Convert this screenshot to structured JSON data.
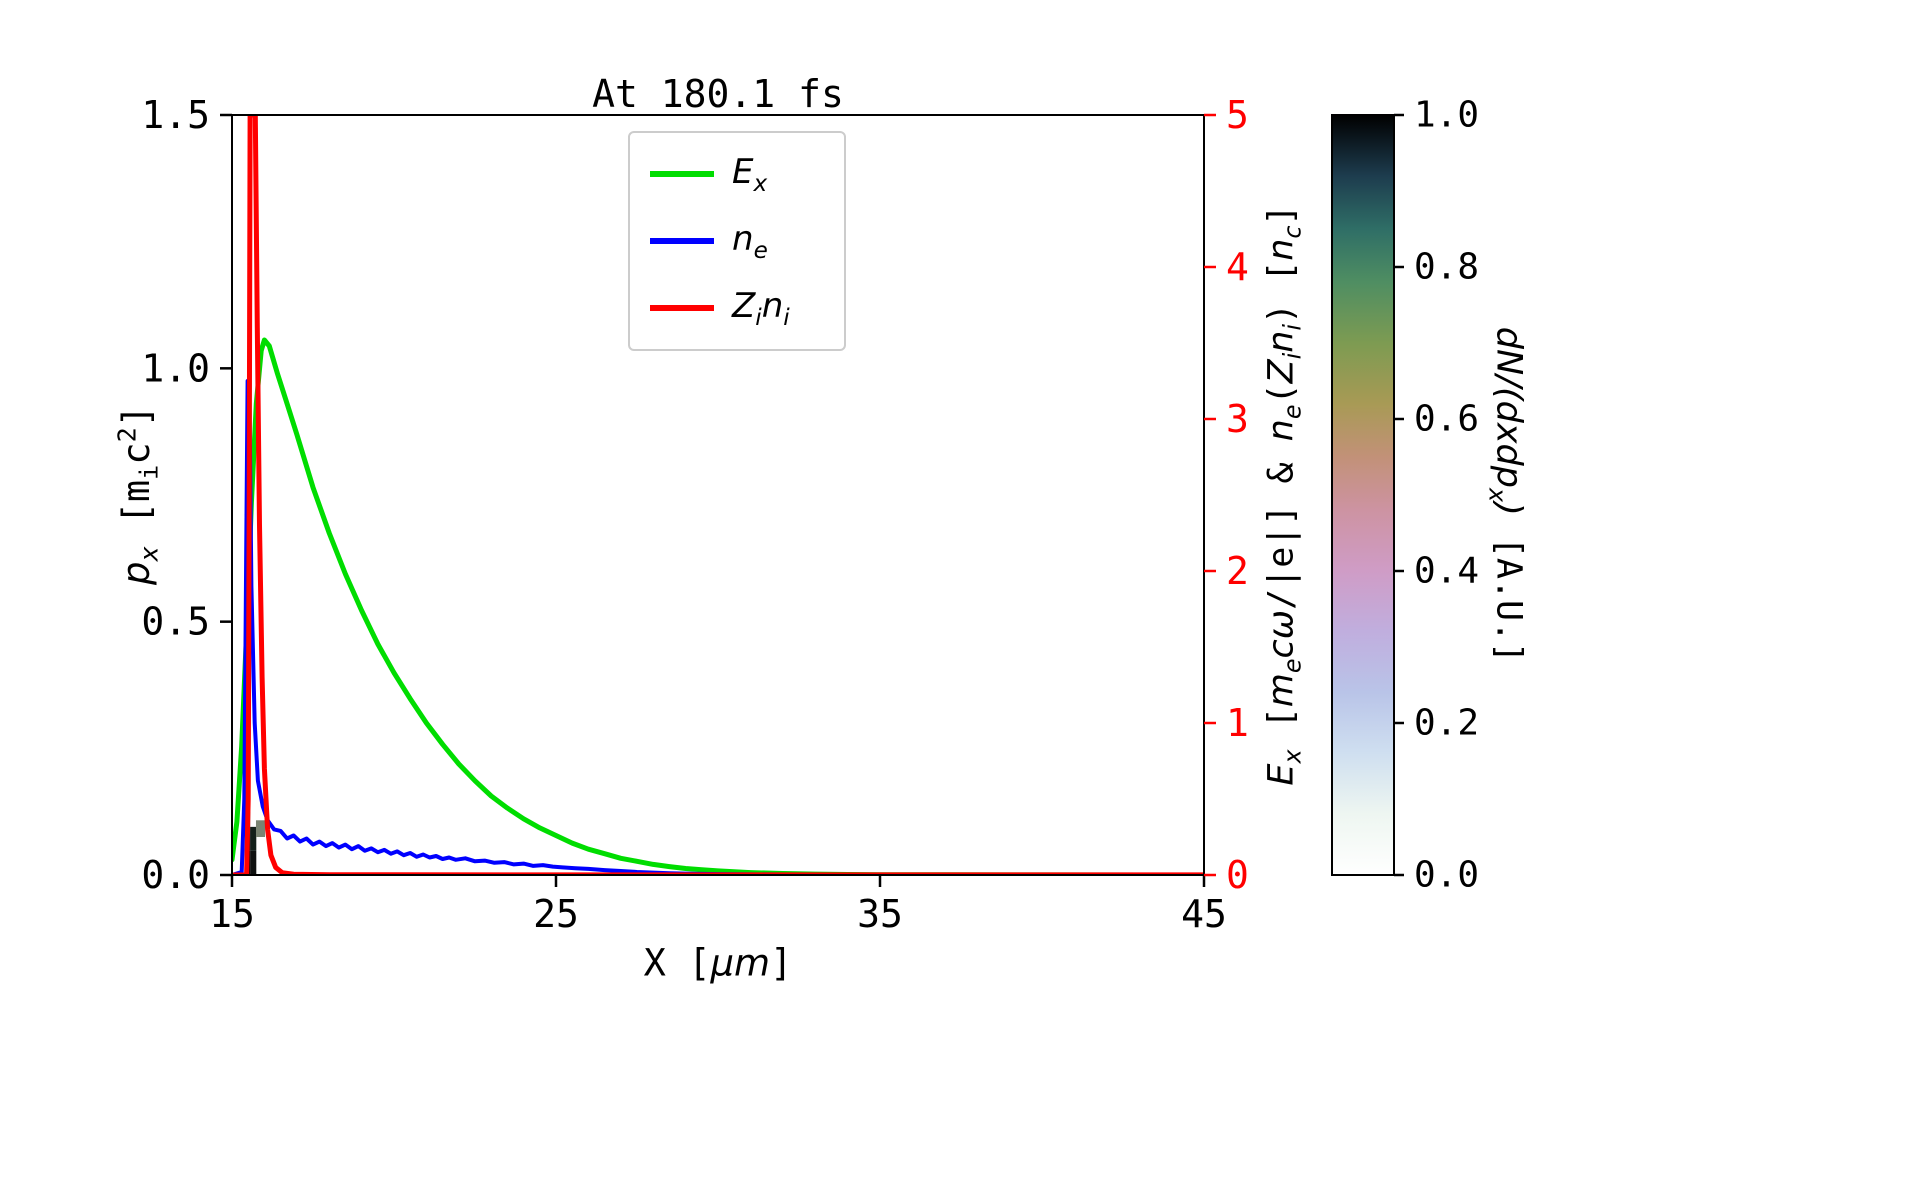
{
  "chart_data": {
    "type": "line",
    "title": "At 180.1 fs",
    "xlabel": "X [μm]",
    "ylabel_left": "p_x [m_i c²]",
    "ylabel_right": "E_x [m_e cω/|e|] & n_e(Z_i n_i) [n_c]",
    "xlim": [
      15,
      45
    ],
    "ylim_left": [
      0,
      1.5
    ],
    "ylim_right": [
      0,
      5
    ],
    "grid": false,
    "legend_position": "upper center",
    "axis_colors": {
      "left": "#000000",
      "right": "#ff0000"
    },
    "x_ticks": [
      {
        "v": 15,
        "label": "15"
      },
      {
        "v": 25,
        "label": "25"
      },
      {
        "v": 35,
        "label": "35"
      },
      {
        "v": 45,
        "label": "45"
      }
    ],
    "y_ticks_left": [
      {
        "v": 0.0,
        "label": "0.0"
      },
      {
        "v": 0.5,
        "label": "0.5"
      },
      {
        "v": 1.0,
        "label": "1.0"
      },
      {
        "v": 1.5,
        "label": "1.5"
      }
    ],
    "y_ticks_right": [
      {
        "v": 0,
        "label": "0"
      },
      {
        "v": 1,
        "label": "1"
      },
      {
        "v": 2,
        "label": "2"
      },
      {
        "v": 3,
        "label": "3"
      },
      {
        "v": 4,
        "label": "4"
      },
      {
        "v": 5,
        "label": "5"
      }
    ],
    "xlabel_parts": [
      {
        "t": "X [",
        "mono": 1
      },
      {
        "t": "μm",
        "i": 1
      },
      {
        "t": "]",
        "mono": 1
      }
    ],
    "ylabel_left_parts": [
      {
        "t": "p",
        "i": 1
      },
      {
        "t": "x",
        "i": 1,
        "sub": 1
      },
      {
        "t": " [m",
        "mono": 1
      },
      {
        "t": "i",
        "mono": 1,
        "sub": 1
      },
      {
        "t": "c",
        "mono": 1
      },
      {
        "t": "2",
        "mono": 1,
        "sup": 1
      },
      {
        "t": "]",
        "mono": 1
      }
    ],
    "ylabel_right_parts": [
      {
        "t": "E",
        "i": 1
      },
      {
        "t": "x",
        "i": 1,
        "sub": 1
      },
      {
        "t": " [",
        "mono": 1
      },
      {
        "t": "m",
        "i": 1
      },
      {
        "t": "e",
        "i": 1,
        "sub": 1
      },
      {
        "t": "cω",
        "i": 1
      },
      {
        "t": "/|e|]",
        "mono": 1
      },
      {
        "t": " & ",
        "mono": 1
      },
      {
        "t": "n",
        "i": 1
      },
      {
        "t": "e",
        "i": 1,
        "sub": 1
      },
      {
        "t": "(",
        "mono": 1
      },
      {
        "t": "Z",
        "i": 1
      },
      {
        "t": "i",
        "i": 1,
        "sub": 1
      },
      {
        "t": "n",
        "i": 1
      },
      {
        "t": "i",
        "i": 1,
        "sub": 1
      },
      {
        "t": ")",
        "mono": 1
      },
      {
        "t": " [",
        "mono": 1
      },
      {
        "t": "n",
        "i": 1
      },
      {
        "t": "c",
        "i": 1,
        "sub": 1
      },
      {
        "t": "]",
        "mono": 1
      }
    ],
    "series": [
      {
        "name": "E_x",
        "color": "#00dd00",
        "axis": "right",
        "line_width": 5,
        "label_parts": [
          {
            "t": "E",
            "i": 1
          },
          {
            "t": "x",
            "i": 1,
            "sub": 1
          }
        ],
        "points": [
          [
            15.0,
            0.1
          ],
          [
            15.15,
            0.35
          ],
          [
            15.3,
            0.85
          ],
          [
            15.45,
            1.6
          ],
          [
            15.6,
            2.45
          ],
          [
            15.75,
            3.1
          ],
          [
            15.9,
            3.45
          ],
          [
            16.0,
            3.52
          ],
          [
            16.15,
            3.48
          ],
          [
            16.4,
            3.3
          ],
          [
            16.7,
            3.1
          ],
          [
            17.0,
            2.9
          ],
          [
            17.5,
            2.55
          ],
          [
            18.0,
            2.25
          ],
          [
            18.5,
            1.98
          ],
          [
            19.0,
            1.74
          ],
          [
            19.5,
            1.52
          ],
          [
            20.0,
            1.33
          ],
          [
            20.5,
            1.16
          ],
          [
            21.0,
            1.0
          ],
          [
            21.5,
            0.86
          ],
          [
            22.0,
            0.73
          ],
          [
            22.5,
            0.62
          ],
          [
            23.0,
            0.52
          ],
          [
            23.5,
            0.44
          ],
          [
            24.0,
            0.37
          ],
          [
            24.5,
            0.31
          ],
          [
            25.0,
            0.26
          ],
          [
            25.5,
            0.21
          ],
          [
            26.0,
            0.17
          ],
          [
            26.5,
            0.14
          ],
          [
            27.0,
            0.11
          ],
          [
            27.5,
            0.09
          ],
          [
            28.0,
            0.07
          ],
          [
            28.5,
            0.055
          ],
          [
            29.0,
            0.043
          ],
          [
            29.5,
            0.034
          ],
          [
            30.0,
            0.027
          ],
          [
            30.5,
            0.021
          ],
          [
            31.0,
            0.016
          ],
          [
            32.0,
            0.01
          ],
          [
            33.0,
            0.006
          ],
          [
            34.0,
            0.0035
          ],
          [
            35.0,
            0.002
          ],
          [
            37.0,
            0.001
          ],
          [
            40.0,
            0.0005
          ],
          [
            45.0,
            0.0003
          ]
        ]
      },
      {
        "name": "n_e",
        "color": "#0000ff",
        "axis": "right",
        "line_width": 4,
        "label_parts": [
          {
            "t": "n",
            "i": 1
          },
          {
            "t": "e",
            "i": 1,
            "sub": 1
          }
        ],
        "points": [
          [
            15.0,
            0.0
          ],
          [
            15.3,
            0.02
          ],
          [
            15.38,
            0.5
          ],
          [
            15.44,
            2.2
          ],
          [
            15.48,
            3.25
          ],
          [
            15.54,
            3.1
          ],
          [
            15.6,
            1.9
          ],
          [
            15.7,
            1.0
          ],
          [
            15.8,
            0.62
          ],
          [
            15.95,
            0.45
          ],
          [
            16.1,
            0.36
          ],
          [
            16.3,
            0.3
          ],
          [
            16.5,
            0.29
          ],
          [
            16.7,
            0.24
          ],
          [
            16.9,
            0.26
          ],
          [
            17.1,
            0.22
          ],
          [
            17.3,
            0.24
          ],
          [
            17.5,
            0.2
          ],
          [
            17.7,
            0.22
          ],
          [
            17.9,
            0.19
          ],
          [
            18.1,
            0.21
          ],
          [
            18.3,
            0.18
          ],
          [
            18.5,
            0.2
          ],
          [
            18.7,
            0.17
          ],
          [
            18.9,
            0.19
          ],
          [
            19.1,
            0.16
          ],
          [
            19.3,
            0.175
          ],
          [
            19.5,
            0.15
          ],
          [
            19.7,
            0.165
          ],
          [
            19.9,
            0.14
          ],
          [
            20.1,
            0.155
          ],
          [
            20.3,
            0.13
          ],
          [
            20.5,
            0.145
          ],
          [
            20.7,
            0.12
          ],
          [
            20.9,
            0.135
          ],
          [
            21.1,
            0.115
          ],
          [
            21.3,
            0.125
          ],
          [
            21.5,
            0.105
          ],
          [
            21.7,
            0.115
          ],
          [
            21.9,
            0.1
          ],
          [
            22.2,
            0.11
          ],
          [
            22.5,
            0.09
          ],
          [
            22.8,
            0.095
          ],
          [
            23.1,
            0.08
          ],
          [
            23.4,
            0.085
          ],
          [
            23.7,
            0.07
          ],
          [
            24.0,
            0.075
          ],
          [
            24.3,
            0.06
          ],
          [
            24.6,
            0.065
          ],
          [
            24.9,
            0.055
          ],
          [
            25.2,
            0.05
          ],
          [
            25.6,
            0.045
          ],
          [
            26.0,
            0.04
          ],
          [
            26.5,
            0.032
          ],
          [
            27.0,
            0.026
          ],
          [
            27.5,
            0.02
          ],
          [
            28.0,
            0.016
          ],
          [
            28.5,
            0.012
          ],
          [
            29.0,
            0.009
          ],
          [
            29.5,
            0.007
          ],
          [
            30.0,
            0.006
          ],
          [
            31.0,
            0.004
          ],
          [
            32.0,
            0.003
          ],
          [
            33.0,
            0.002
          ],
          [
            35.0,
            0.0015
          ],
          [
            38.0,
            0.001
          ],
          [
            41.0,
            0.0007
          ],
          [
            45.0,
            0.0005
          ]
        ]
      },
      {
        "name": "Z_i n_i",
        "color": "#ff0000",
        "axis": "right",
        "line_width": 5,
        "label_parts": [
          {
            "t": "Z",
            "i": 1
          },
          {
            "t": "i",
            "i": 1,
            "sub": 1
          },
          {
            "t": "n",
            "i": 1
          },
          {
            "t": "i",
            "i": 1,
            "sub": 1
          }
        ],
        "points": [
          [
            15.0,
            0.0
          ],
          [
            15.45,
            0.0
          ],
          [
            15.5,
            0.5
          ],
          [
            15.53,
            2.5
          ],
          [
            15.56,
            5.0
          ],
          [
            15.72,
            5.0
          ],
          [
            15.78,
            3.6
          ],
          [
            15.85,
            2.3
          ],
          [
            15.93,
            1.3
          ],
          [
            16.0,
            0.7
          ],
          [
            16.1,
            0.3
          ],
          [
            16.2,
            0.13
          ],
          [
            16.35,
            0.05
          ],
          [
            16.55,
            0.015
          ],
          [
            16.9,
            0.005
          ],
          [
            18.0,
            0.001
          ],
          [
            45.0,
            0.0005
          ]
        ]
      }
    ],
    "heatmap_cells": [
      {
        "x0": 15.4,
        "x1": 15.58,
        "p0": 0.0,
        "p1": 0.048,
        "color": "#060606"
      },
      {
        "x0": 15.4,
        "x1": 15.58,
        "p0": 0.048,
        "p1": 0.095,
        "color": "#0b0b0b"
      },
      {
        "x0": 15.58,
        "x1": 15.75,
        "p0": 0.0,
        "p1": 0.048,
        "color": "#0f1110"
      },
      {
        "x0": 15.58,
        "x1": 15.75,
        "p0": 0.048,
        "p1": 0.095,
        "color": "#13201a"
      },
      {
        "x0": 15.74,
        "x1": 16.02,
        "p0": 0.075,
        "p1": 0.108,
        "color": "#7a8472"
      },
      {
        "x0": 15.4,
        "x1": 15.56,
        "p0": 0.095,
        "p1": 0.125,
        "color": "#161616"
      }
    ],
    "colorbar": {
      "label": "dN/(dxdp_x) [A.U.]",
      "label_parts": [
        {
          "t": "dN",
          "i": 1
        },
        {
          "t": "/(",
          "i": 1
        },
        {
          "t": "dxdp",
          "i": 1
        },
        {
          "t": "x",
          "i": 1,
          "sub": 1
        },
        {
          "t": ")",
          "i": 1
        },
        {
          "t": " [A.U.]",
          "mono": 1
        }
      ],
      "range": [
        0.0,
        1.0
      ],
      "ticks": [
        {
          "v": 0.0,
          "label": "0.0"
        },
        {
          "v": 0.2,
          "label": "0.2"
        },
        {
          "v": 0.4,
          "label": "0.4"
        },
        {
          "v": 0.6,
          "label": "0.6"
        },
        {
          "v": 0.8,
          "label": "0.8"
        },
        {
          "v": 1.0,
          "label": "1.0"
        }
      ],
      "stops": [
        [
          0.0,
          "#ffffff"
        ],
        [
          0.08,
          "#eef6f1"
        ],
        [
          0.16,
          "#cfdff0"
        ],
        [
          0.24,
          "#b9c4e8"
        ],
        [
          0.32,
          "#c0aede"
        ],
        [
          0.4,
          "#cf9cc6"
        ],
        [
          0.48,
          "#cd93a2"
        ],
        [
          0.55,
          "#c29178"
        ],
        [
          0.62,
          "#a89a55"
        ],
        [
          0.7,
          "#7d9b52"
        ],
        [
          0.78,
          "#4f8e62"
        ],
        [
          0.85,
          "#2f6e66"
        ],
        [
          0.92,
          "#1d3c4e"
        ],
        [
          1.0,
          "#000000"
        ]
      ]
    }
  }
}
